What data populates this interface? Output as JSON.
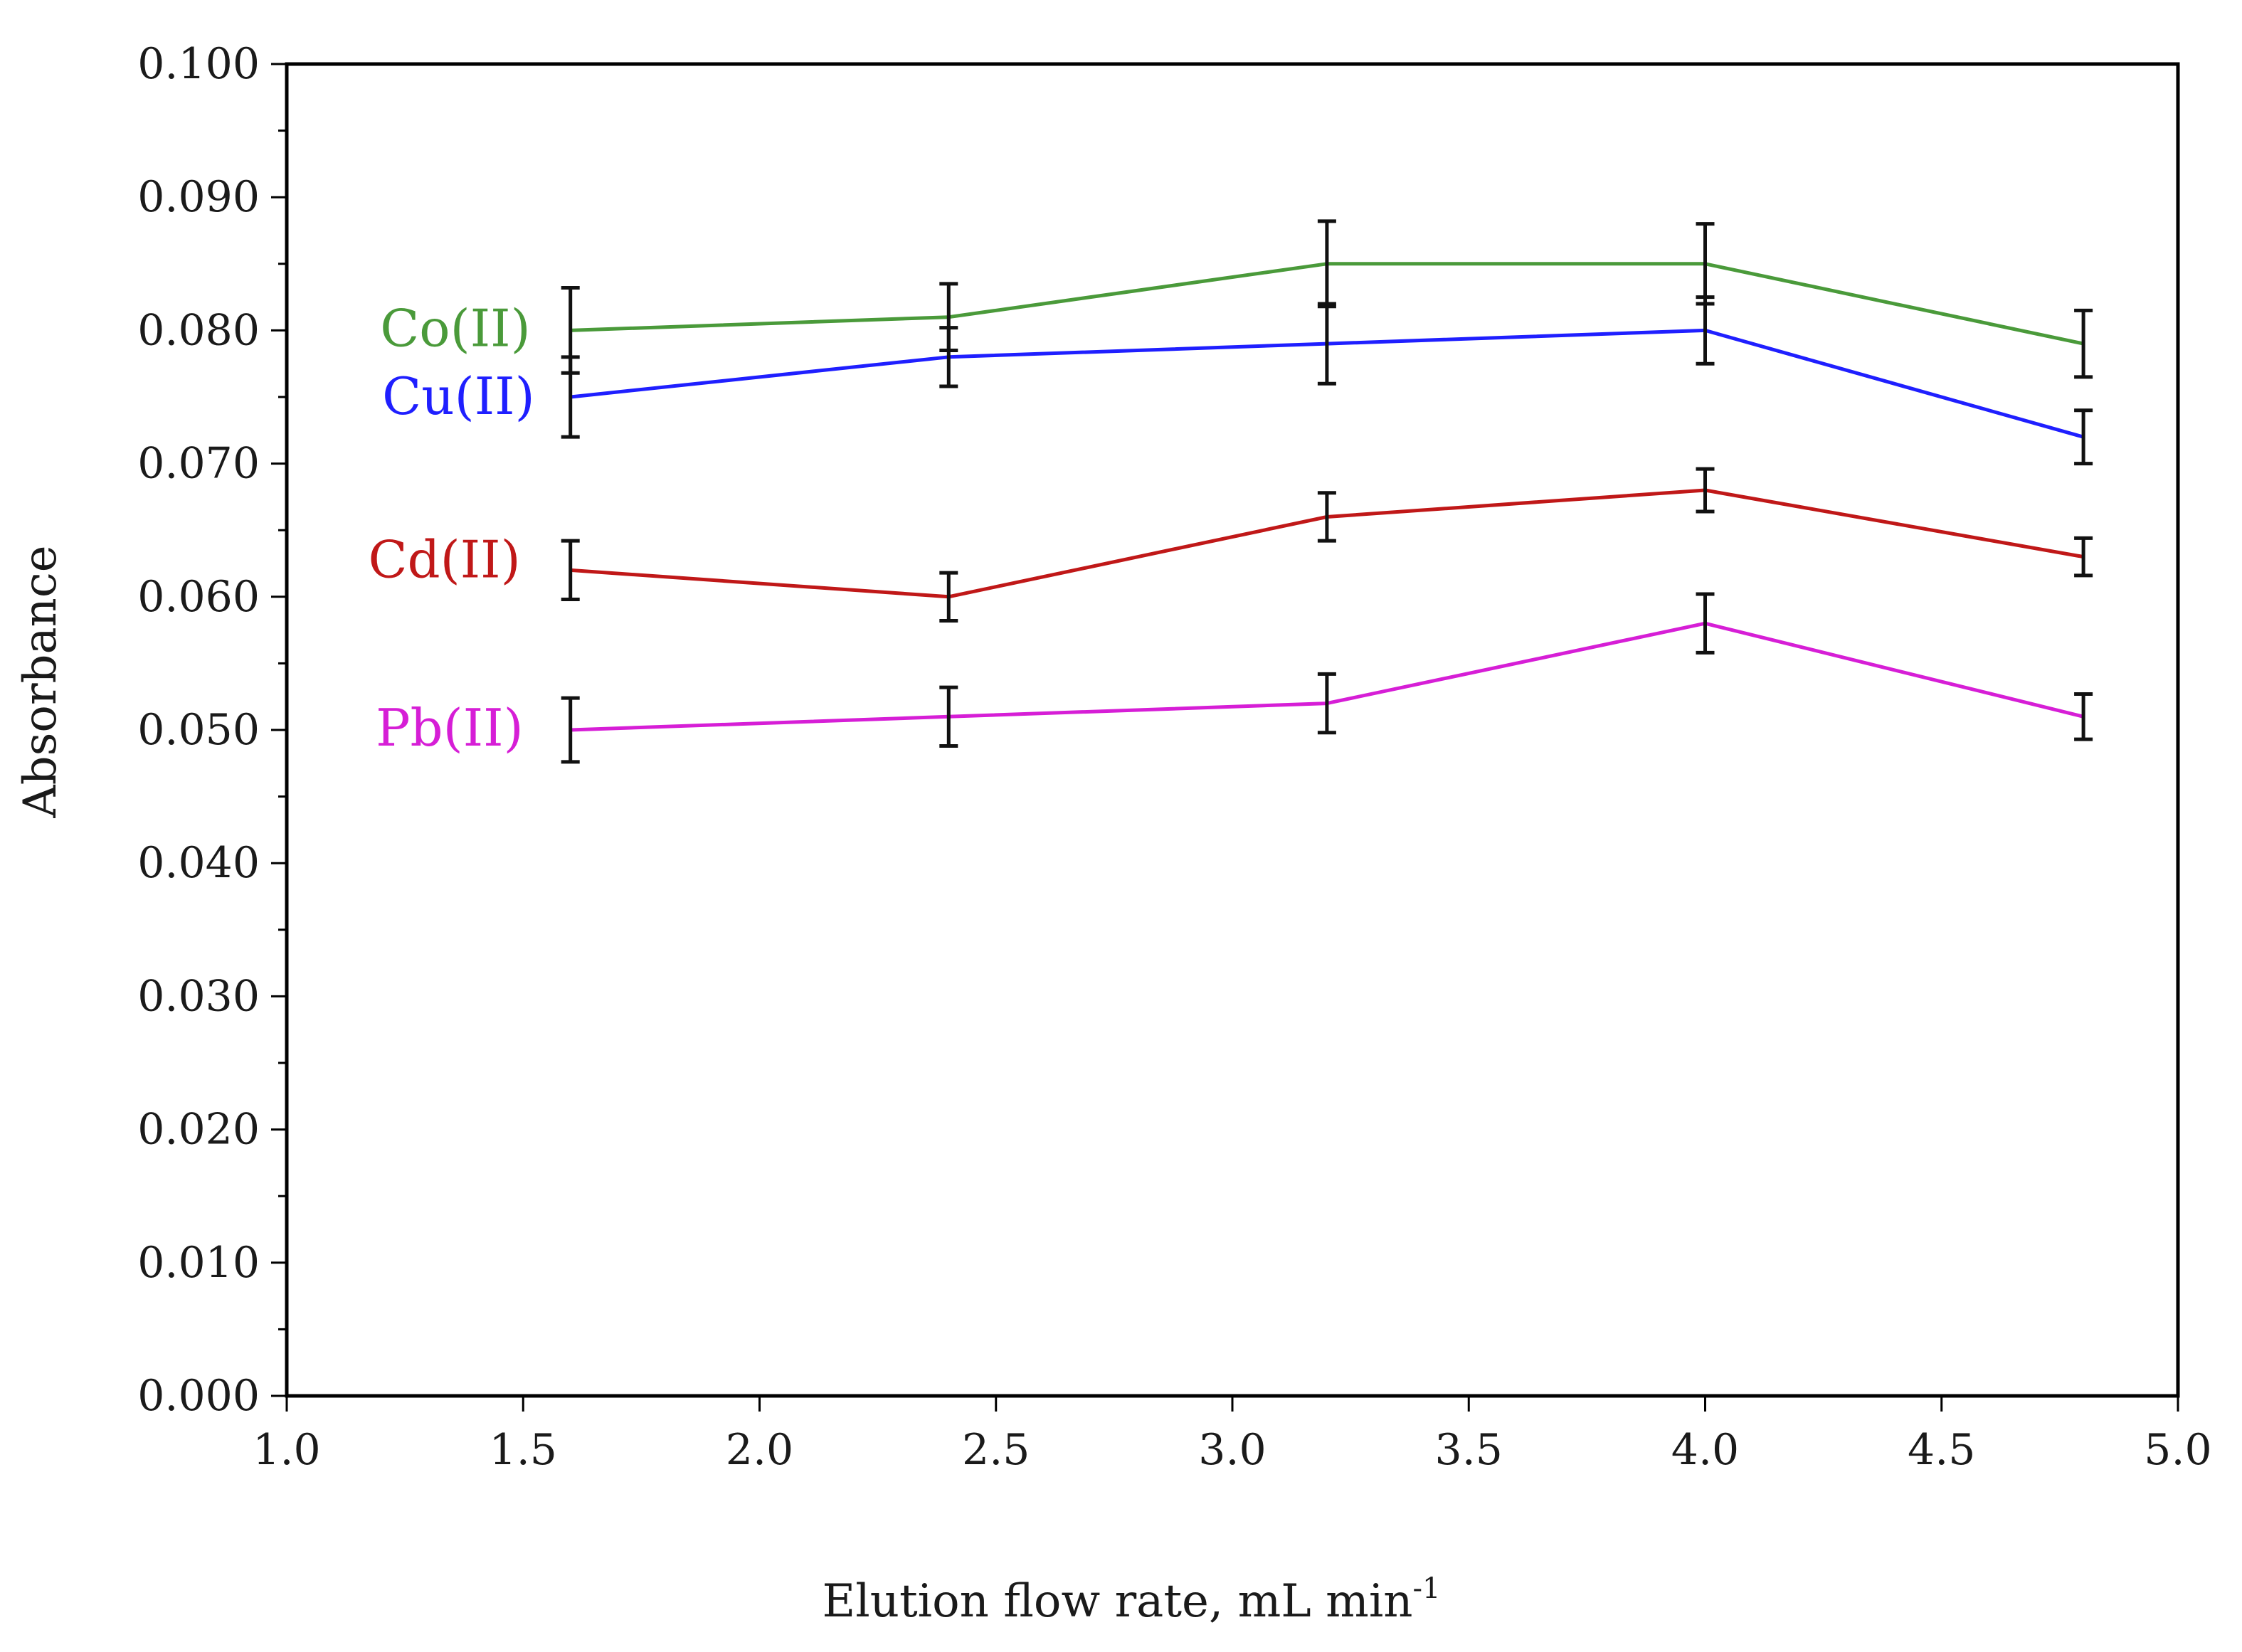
{
  "chart_data": {
    "type": "line",
    "title": "",
    "xlabel": "Elution flow rate, mL min",
    "xlabel_superscript": "-1",
    "ylabel": "Absorbance",
    "xlim": [
      1.0,
      5.0
    ],
    "ylim": [
      0.0,
      0.1
    ],
    "x_ticks": [
      "1.0",
      "1.5",
      "2.0",
      "2.5",
      "3.0",
      "3.5",
      "4.0",
      "4.5",
      "5.0"
    ],
    "y_ticks": [
      "0.000",
      "0.010",
      "0.020",
      "0.030",
      "0.040",
      "0.050",
      "0.060",
      "0.070",
      "0.080",
      "0.090",
      "0.100"
    ],
    "x_tick_values": [
      1.0,
      1.5,
      2.0,
      2.5,
      3.0,
      3.5,
      4.0,
      4.5,
      5.0
    ],
    "y_tick_values": [
      0.0,
      0.01,
      0.02,
      0.03,
      0.04,
      0.05,
      0.06,
      0.07,
      0.08,
      0.09,
      0.1
    ],
    "y_minor_step": 0.005,
    "grid": false,
    "x": [
      1.6,
      2.4,
      3.2,
      4.0,
      4.8
    ],
    "series": [
      {
        "name": "Co(II)",
        "color": "#4a9a3a",
        "values": [
          0.08,
          0.081,
          0.085,
          0.085,
          0.079
        ],
        "errors": [
          0.0032,
          0.0025,
          0.0032,
          0.003,
          0.0025
        ]
      },
      {
        "name": "Cu(II)",
        "color": "#1f1fff",
        "values": [
          0.075,
          0.078,
          0.079,
          0.08,
          0.072
        ],
        "errors": [
          0.003,
          0.0022,
          0.003,
          0.0025,
          0.002
        ]
      },
      {
        "name": "Cd(II)",
        "color": "#c01818",
        "values": [
          0.062,
          0.06,
          0.066,
          0.068,
          0.063
        ],
        "errors": [
          0.0022,
          0.0018,
          0.0018,
          0.0016,
          0.0014
        ]
      },
      {
        "name": "Pb(II)",
        "color": "#d61ed6",
        "values": [
          0.05,
          0.051,
          0.052,
          0.058,
          0.051
        ],
        "errors": [
          0.0024,
          0.0022,
          0.0022,
          0.0022,
          0.0017
        ]
      }
    ]
  }
}
